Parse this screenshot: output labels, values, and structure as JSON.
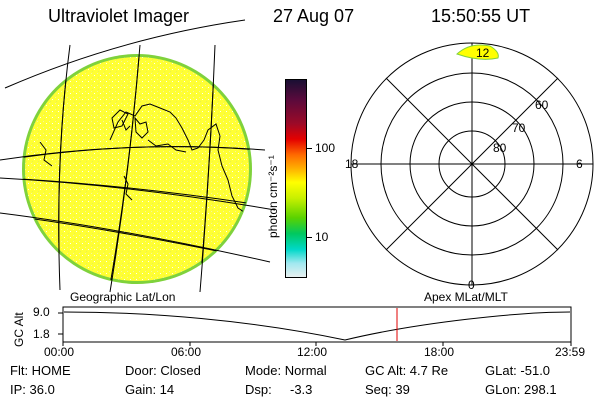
{
  "header": {
    "instrument": "Ultraviolet Imager",
    "date": "27 Aug 07",
    "time": "15:50:55 UT"
  },
  "colorbar": {
    "unit_label": "photon cm⁻²s⁻¹",
    "tick_labels": [
      "100",
      "10"
    ],
    "colors_top_to_bottom": [
      "#1a0f33",
      "#5a0a3c",
      "#9b0a28",
      "#e40000",
      "#ff6a00",
      "#ffb000",
      "#ffff00",
      "#c8f000",
      "#5ad200",
      "#00c860",
      "#00d8c8",
      "#a0e8f0",
      "#e8f0f0"
    ]
  },
  "left_map": {
    "caption": "Geographic Lat/Lon",
    "fill_color": "#ffff00",
    "rim_color": "#7fd23c"
  },
  "polar_plot": {
    "caption": "Apex MLat/MLT",
    "lat_labels": [
      "80",
      "70",
      "60"
    ],
    "mlt_labels": [
      "12",
      "18",
      "6",
      "0"
    ]
  },
  "timeline": {
    "axis_label": "GC Alt",
    "y_ticks": [
      "9.0",
      "1.8"
    ],
    "x_ticks": [
      "00:00",
      "06:00",
      "12:00",
      "18:00",
      "23:59"
    ],
    "current_marker_hours": 15.85,
    "marker_color": "#e00000"
  },
  "info": {
    "filter": "Flt: HOME",
    "door": "Door: Closed",
    "mode": "Mode: Normal",
    "gc_alt": "GC Alt: 4.7 Re",
    "glat": "GLat: -51.0",
    "ip": "IP: 36.0",
    "gain": "Gain: 14",
    "dsp_label": "Dsp:",
    "dsp_value": "-3.3",
    "seq": "Seq: 39",
    "glon": "GLon: 298.1"
  }
}
